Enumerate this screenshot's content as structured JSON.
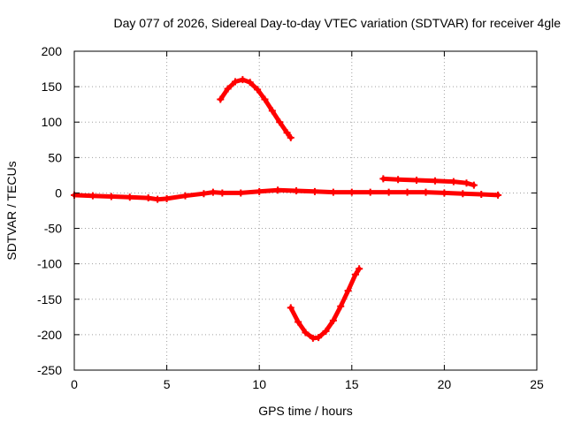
{
  "chart_data": {
    "type": "line",
    "title": "Day 077 of 2026, Sidereal Day-to-day VTEC variation (SDTVAR) for receiver 4gle",
    "xlabel": "GPS time / hours",
    "ylabel": "SDTVAR / TECUs",
    "xlim": [
      0,
      25
    ],
    "ylim": [
      -250,
      200
    ],
    "x_ticks": [
      0,
      5,
      10,
      15,
      20,
      25
    ],
    "y_ticks": [
      -250,
      -200,
      -150,
      -100,
      -50,
      0,
      50,
      100,
      150,
      200
    ],
    "grid": true,
    "series_color": "#ff0000",
    "series": [
      {
        "name": "near-zero baseline",
        "x": [
          0,
          1,
          2,
          3,
          4,
          4.5,
          5,
          6,
          7,
          7.5,
          8,
          9,
          10,
          11,
          12,
          13,
          14,
          15,
          16,
          17,
          18,
          19,
          20,
          21,
          22,
          22.9
        ],
        "y": [
          -3,
          -4,
          -5,
          -6,
          -7,
          -9,
          -8,
          -4,
          -1,
          1,
          0,
          0,
          2,
          4,
          3,
          2,
          1,
          1,
          1,
          1,
          1,
          1,
          0,
          -1,
          -2,
          -3
        ]
      },
      {
        "name": "upper arc",
        "x": [
          7.9,
          8.3,
          8.7,
          9.1,
          9.5,
          9.9,
          10.3,
          10.7,
          11.1,
          11.5,
          11.7
        ],
        "y": [
          132,
          147,
          157,
          160,
          156,
          146,
          132,
          116,
          100,
          85,
          78
        ]
      },
      {
        "name": "lower arc",
        "x": [
          11.7,
          12.1,
          12.5,
          12.9,
          13.2,
          13.6,
          14.0,
          14.4,
          14.8,
          15.2,
          15.4
        ],
        "y": [
          -162,
          -182,
          -197,
          -205,
          -204,
          -195,
          -180,
          -160,
          -138,
          -115,
          -107
        ]
      },
      {
        "name": "offset segment",
        "x": [
          16.7,
          17.5,
          18.5,
          19.5,
          20.5,
          21.2,
          21.6
        ],
        "y": [
          20,
          19,
          18,
          17,
          16,
          14,
          11
        ]
      }
    ]
  }
}
